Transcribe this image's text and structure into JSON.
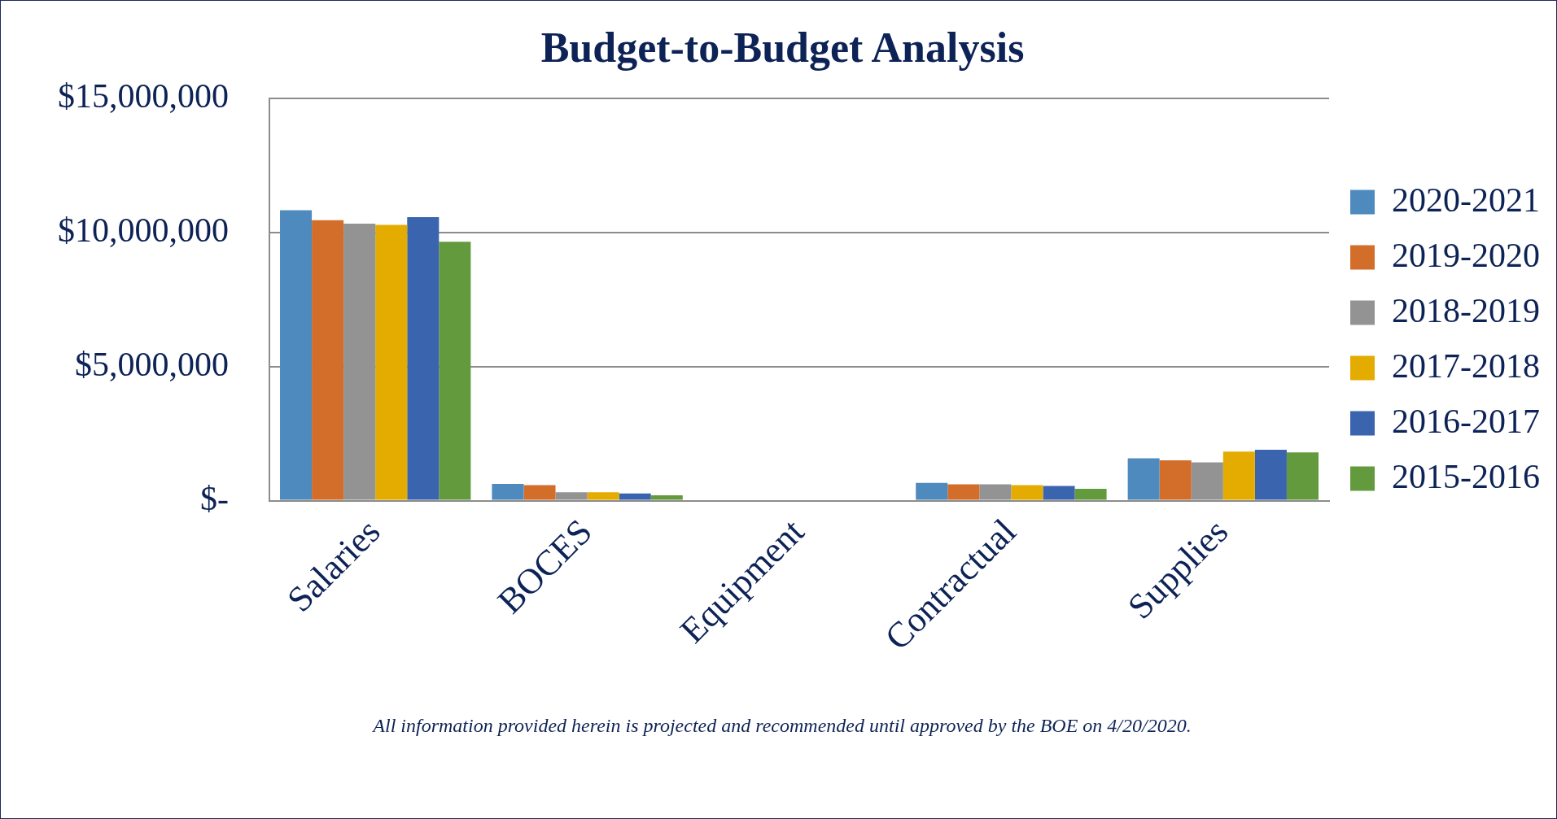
{
  "chart_data": {
    "type": "bar",
    "title": "Budget-to-Budget Analysis",
    "categories": [
      "Salaries",
      "BOCES",
      "Equipment",
      "Contractual",
      "Supplies"
    ],
    "series": [
      {
        "name": "2020-2021",
        "color": "#4f8abe",
        "values": [
          10840000,
          620000,
          0,
          660000,
          1580000
        ]
      },
      {
        "name": "2019-2020",
        "color": "#d36e2a",
        "values": [
          10470000,
          580000,
          0,
          610000,
          1500000
        ]
      },
      {
        "name": "2018-2019",
        "color": "#939393",
        "values": [
          10340000,
          310000,
          0,
          610000,
          1430000
        ]
      },
      {
        "name": "2017-2018",
        "color": "#e4ac00",
        "values": [
          10290000,
          310000,
          0,
          580000,
          1830000
        ]
      },
      {
        "name": "2016-2017",
        "color": "#3a64ae",
        "values": [
          10580000,
          270000,
          0,
          550000,
          1900000
        ]
      },
      {
        "name": "2015-2016",
        "color": "#639a3d",
        "values": [
          9660000,
          200000,
          0,
          440000,
          1800000
        ]
      }
    ],
    "ylim": [
      0,
      15000000
    ],
    "yticks": [
      {
        "value": 0,
        "label": "$-"
      },
      {
        "value": 5000000,
        "label": "$5,000,000"
      },
      {
        "value": 10000000,
        "label": "$10,000,000"
      },
      {
        "value": 15000000,
        "label": "$15,000,000"
      }
    ],
    "grid": "y",
    "legend": "right",
    "annotations": [
      "All information provided herein is projected and recommended until approved by the BOE on 4/20/2020."
    ]
  }
}
